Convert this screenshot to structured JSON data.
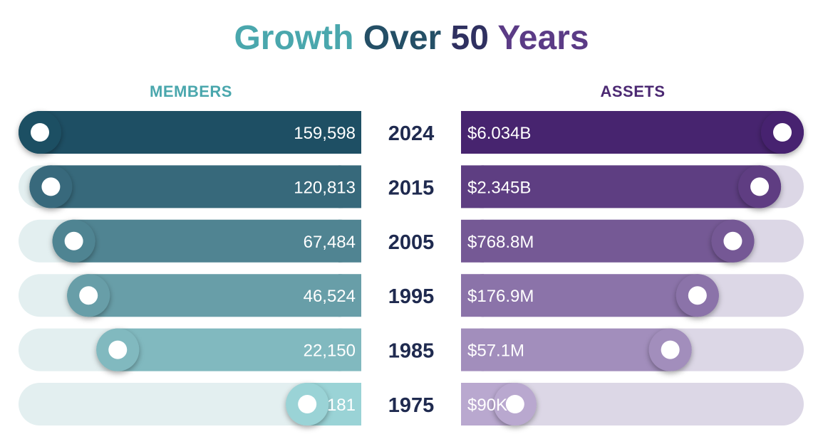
{
  "title": {
    "words": [
      "Growth",
      "Over",
      "50",
      "Years"
    ]
  },
  "colors": {
    "members_dark": "#1e4f64",
    "members_light": "#9ad3d6",
    "members_track": "#e3eff0",
    "assets_dark": "#47246f",
    "assets_light": "#b9a8cf",
    "assets_track": "#dcd7e6",
    "year_text": "#1f2a4f"
  },
  "chart_data": {
    "type": "bar",
    "title": "Growth Over 50 Years",
    "categories": [
      "2024",
      "2015",
      "2005",
      "1995",
      "1985",
      "1975"
    ],
    "series": [
      {
        "name": "MEMBERS",
        "labels": [
          "159,598",
          "120,813",
          "67,484",
          "46,524",
          "22,150",
          "181"
        ],
        "values": [
          159598,
          120813,
          67484,
          46524,
          22150,
          181
        ],
        "direction": "left"
      },
      {
        "name": "ASSETS",
        "labels": [
          "$6.034B",
          "$2.345B",
          "$768.8M",
          "$176.9M",
          "$57.1M",
          "$90K"
        ],
        "values": [
          6034000000,
          2345000000,
          768800000,
          176900000,
          57100000,
          90000
        ],
        "direction": "right"
      }
    ],
    "grid": false,
    "legend": "none"
  }
}
